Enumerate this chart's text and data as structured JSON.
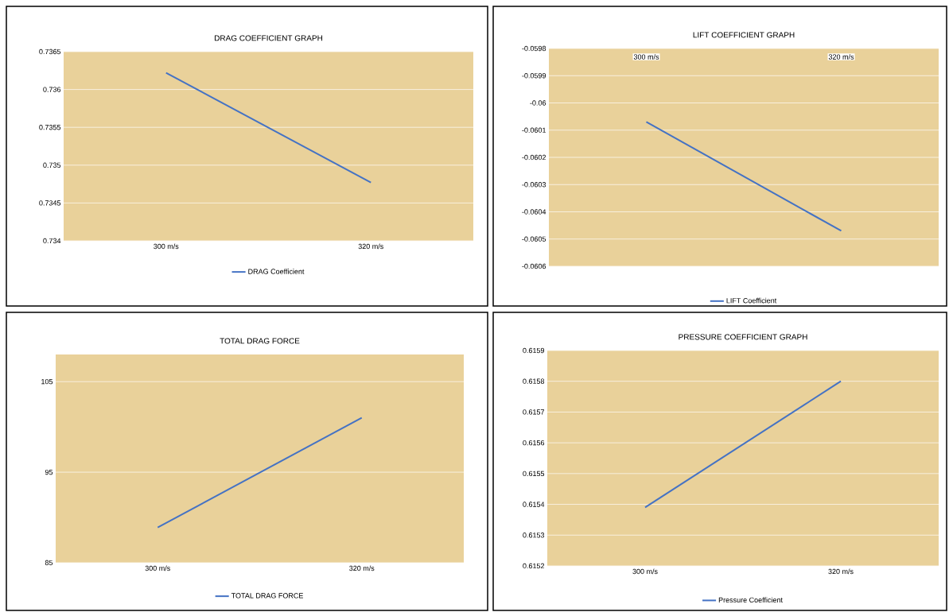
{
  "chart_data": [
    {
      "type": "line",
      "title": "DRAG COEFFICIENT GRAPH",
      "categories": [
        "300 m/s",
        "320 m/s"
      ],
      "series": [
        {
          "name": "DRAG Coefficient",
          "color": "#4472c4",
          "values": [
            0.73622,
            0.73477
          ]
        }
      ],
      "ylim": [
        0.734,
        0.7365
      ],
      "yticks": [
        0.734,
        0.7345,
        0.735,
        0.7355,
        0.736,
        0.7365
      ],
      "grid": "y",
      "legend": "bottom"
    },
    {
      "type": "line",
      "title": "LIFT COEFFICIENT GRAPH",
      "categories": [
        "300 m/s",
        "320 m/s"
      ],
      "series": [
        {
          "name": "LIFT Coefficient",
          "color": "#4472c4",
          "values": [
            -0.06007,
            -0.06047
          ]
        }
      ],
      "ylim": [
        -0.0606,
        -0.0598
      ],
      "yticks": [
        -0.0606,
        -0.0605,
        -0.0604,
        -0.0603,
        -0.0602,
        -0.0601,
        -0.06,
        -0.0599,
        -0.0598
      ],
      "grid": "y",
      "legend": "bottom"
    },
    {
      "type": "line",
      "title": "TOTAL DRAG FORCE",
      "categories": [
        "300 m/s",
        "320 m/s"
      ],
      "series": [
        {
          "name": "TOTAL DRAG FORCE",
          "color": "#4472c4",
          "values": [
            88.9,
            101.0
          ]
        }
      ],
      "ylim": [
        85,
        108
      ],
      "yticks": [
        85,
        95,
        105
      ],
      "grid": "y",
      "legend": "bottom"
    },
    {
      "type": "line",
      "title": "PRESSURE COEFFICIENT GRAPH",
      "categories": [
        "300 m/s",
        "320 m/s"
      ],
      "series": [
        {
          "name": "Pressure Coefficient",
          "color": "#4472c4",
          "values": [
            0.61539,
            0.6158
          ]
        }
      ],
      "ylim": [
        0.6152,
        0.6159
      ],
      "yticks": [
        0.6152,
        0.6153,
        0.6154,
        0.6155,
        0.6156,
        0.6157,
        0.6158,
        0.6159
      ],
      "grid": "y",
      "legend": "bottom"
    }
  ]
}
